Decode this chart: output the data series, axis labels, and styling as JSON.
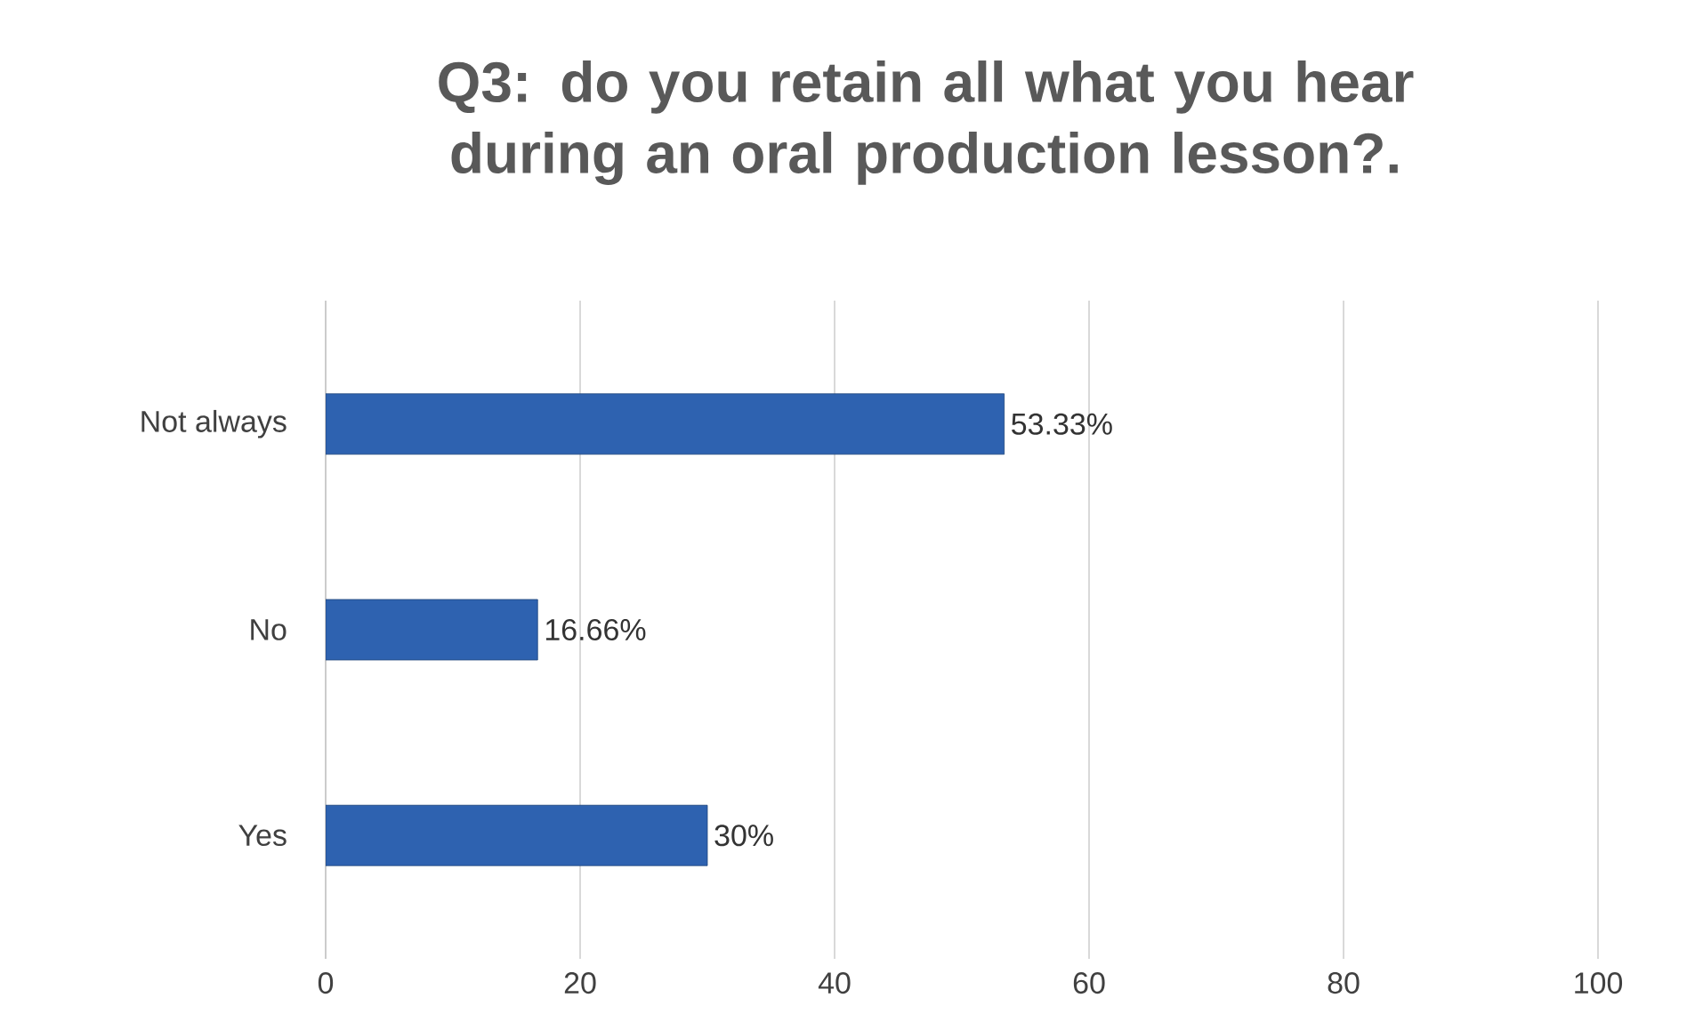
{
  "chart_data": {
    "type": "bar",
    "orientation": "horizontal",
    "title": "Q3: do you retain all what you hear during an oral production lesson?.",
    "categories": [
      "Not always",
      "No",
      "Yes"
    ],
    "values": [
      53.33,
      16.66,
      30
    ],
    "value_labels": [
      "53.33%",
      "16.66%",
      "30%"
    ],
    "color": "#2e62b0",
    "xlim": [
      0,
      100
    ],
    "xticks": [
      0,
      20,
      40,
      60,
      80,
      100
    ],
    "grid": "x"
  }
}
